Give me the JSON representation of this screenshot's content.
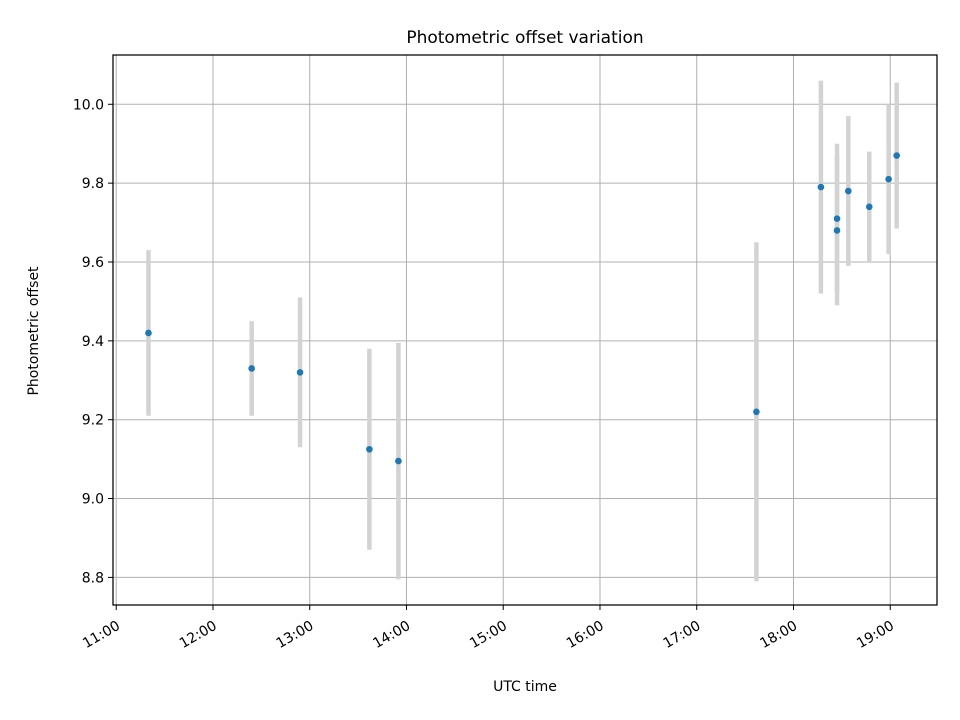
{
  "chart_data": {
    "type": "scatter",
    "title": "Photometric offset variation",
    "xlabel": "UTC time",
    "ylabel": "Photometric offset",
    "x_tick_labels": [
      "11:00",
      "12:00",
      "13:00",
      "14:00",
      "15:00",
      "16:00",
      "17:00",
      "18:00",
      "19:00"
    ],
    "y_tick_labels": [
      "8.8",
      "9.0",
      "9.2",
      "9.4",
      "9.6",
      "9.8",
      "10.0"
    ],
    "y_ticks": [
      8.8,
      9.0,
      9.2,
      9.4,
      9.6,
      9.8,
      10.0
    ],
    "xlim": [
      "10:58",
      "19:29"
    ],
    "ylim": [
      8.73,
      10.125
    ],
    "grid": true,
    "point_color": "#1f77b4",
    "errorbar_color": "#d3d3d3",
    "series": [
      {
        "x": [
          "11:20",
          "12:24",
          "12:54",
          "13:37",
          "13:55",
          "17:37",
          "18:17",
          "18:27",
          "18:27",
          "18:34",
          "18:47",
          "18:59",
          "19:04"
        ],
        "y": [
          9.42,
          9.33,
          9.32,
          9.125,
          9.095,
          9.22,
          9.79,
          9.71,
          9.68,
          9.78,
          9.74,
          9.81,
          9.87
        ],
        "yerr": [
          0.21,
          0.12,
          0.19,
          0.255,
          0.3,
          0.43,
          0.27,
          0.19,
          0.19,
          0.19,
          0.14,
          0.19,
          0.185
        ]
      }
    ]
  }
}
